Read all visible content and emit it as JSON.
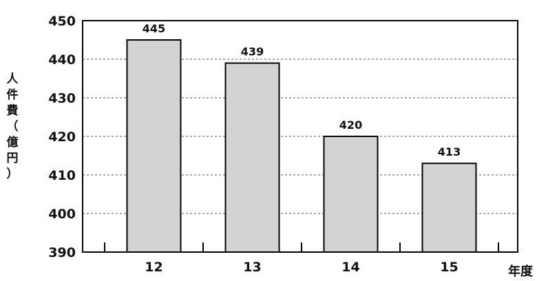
{
  "chart_data": {
    "type": "bar",
    "categories": [
      "12",
      "13",
      "14",
      "15"
    ],
    "values": [
      445,
      439,
      420,
      413
    ],
    "data_labels": [
      "445",
      "439",
      "420",
      "413"
    ],
    "ylabel": "人件費（億円）",
    "xlabel": "年度",
    "ylim": [
      390,
      450
    ],
    "yticks": [
      390,
      400,
      410,
      420,
      430,
      440,
      450
    ],
    "grid": true,
    "bar_color": "#d3d3d3",
    "bar_edge_color": "#000000"
  }
}
